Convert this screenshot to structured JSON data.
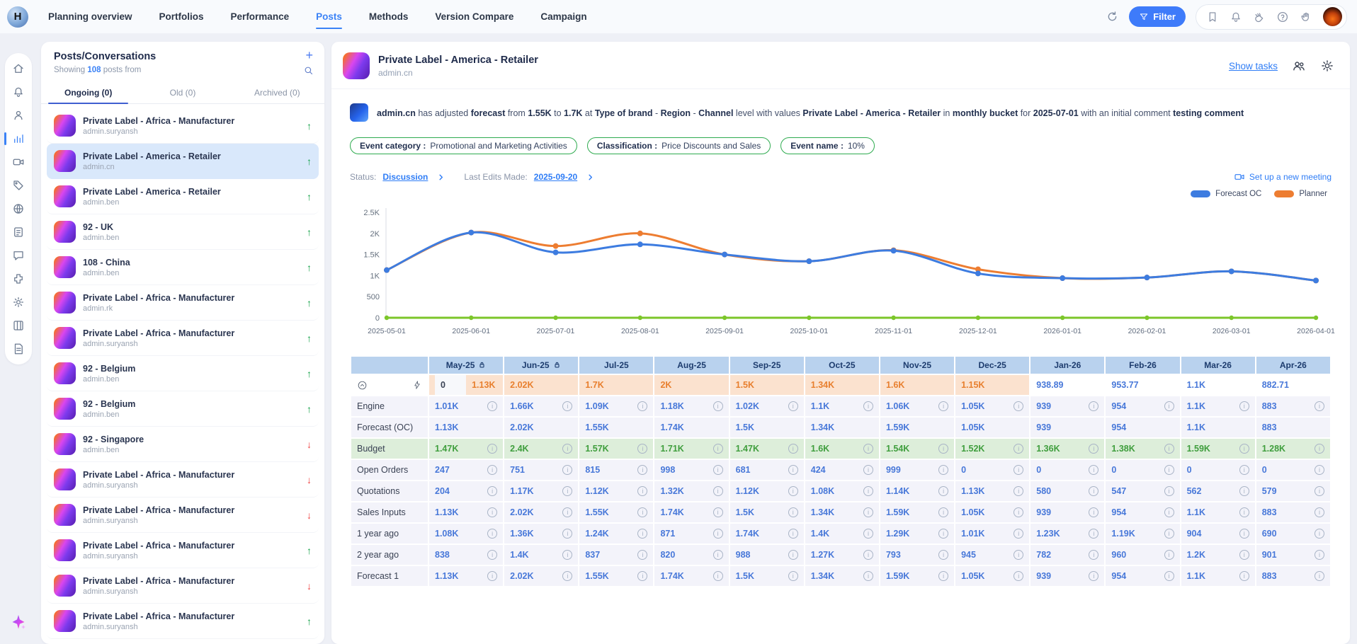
{
  "topnav": {
    "logo_letter": "H",
    "items": [
      {
        "label": "Planning overview",
        "active": false
      },
      {
        "label": "Portfolios",
        "active": false
      },
      {
        "label": "Performance",
        "active": false
      },
      {
        "label": "Posts",
        "active": true
      },
      {
        "label": "Methods",
        "active": false
      },
      {
        "label": "Version Compare",
        "active": false
      },
      {
        "label": "Campaign",
        "active": false
      }
    ],
    "filter_label": "Filter",
    "right_icons": [
      "bookmark",
      "bell",
      "whats-new",
      "help",
      "gesture"
    ]
  },
  "rail": {
    "items": [
      "home",
      "alerts",
      "users",
      "analytics",
      "meetings",
      "tags",
      "globe",
      "planner",
      "chat",
      "integrations",
      "settings",
      "board",
      "notes"
    ],
    "active": "analytics"
  },
  "posts_panel": {
    "title": "Posts/Conversations",
    "subtitle_prefix": "Showing ",
    "subtitle_count": "108",
    "subtitle_suffix": " posts from",
    "tabs": [
      {
        "label": "Ongoing (0)",
        "active": true
      },
      {
        "label": "Old (0)",
        "active": false
      },
      {
        "label": "Archived (0)",
        "active": false
      }
    ],
    "items": [
      {
        "title": "Private Label - Africa - Manufacturer",
        "user": "admin.suryansh",
        "trend": "up",
        "selected": false
      },
      {
        "title": "Private Label - America - Retailer",
        "user": "admin.cn",
        "trend": "up",
        "selected": true
      },
      {
        "title": "Private Label - America - Retailer",
        "user": "admin.ben",
        "trend": "up",
        "selected": false
      },
      {
        "title": "92 - UK",
        "user": "admin.ben",
        "trend": "up",
        "selected": false
      },
      {
        "title": "108 - China",
        "user": "admin.ben",
        "trend": "up",
        "selected": false
      },
      {
        "title": "Private Label - Africa - Manufacturer",
        "user": "admin.rk",
        "trend": "up",
        "selected": false
      },
      {
        "title": "Private Label - Africa - Manufacturer",
        "user": "admin.suryansh",
        "trend": "up",
        "selected": false
      },
      {
        "title": "92 - Belgium",
        "user": "admin.ben",
        "trend": "up",
        "selected": false
      },
      {
        "title": "92 - Belgium",
        "user": "admin.ben",
        "trend": "up",
        "selected": false
      },
      {
        "title": "92 - Singapore",
        "user": "admin.ben",
        "trend": "down",
        "selected": false
      },
      {
        "title": "Private Label - Africa - Manufacturer",
        "user": "admin.suryansh",
        "trend": "down",
        "selected": false
      },
      {
        "title": "Private Label - Africa - Manufacturer",
        "user": "admin.suryansh",
        "trend": "down",
        "selected": false
      },
      {
        "title": "Private Label - Africa - Manufacturer",
        "user": "admin.suryansh",
        "trend": "up",
        "selected": false
      },
      {
        "title": "Private Label - Africa - Manufacturer",
        "user": "admin.suryansh",
        "trend": "down",
        "selected": false
      },
      {
        "title": "Private Label - Africa - Manufacturer",
        "user": "admin.suryansh",
        "trend": "up",
        "selected": false
      }
    ]
  },
  "main": {
    "title": "Private Label - America - Retailer",
    "subtitle": "admin.cn",
    "show_tasks_label": "Show tasks",
    "message_parts": [
      {
        "t": "admin.cn",
        "b": true
      },
      {
        "t": " has adjusted ",
        "b": false
      },
      {
        "t": "forecast",
        "b": true
      },
      {
        "t": " from ",
        "b": false
      },
      {
        "t": "1.55K",
        "b": true
      },
      {
        "t": " to ",
        "b": false
      },
      {
        "t": "1.7K",
        "b": true
      },
      {
        "t": " at ",
        "b": false
      },
      {
        "t": "Type of brand",
        "b": true
      },
      {
        "t": " - ",
        "b": false
      },
      {
        "t": "Region",
        "b": true
      },
      {
        "t": " - ",
        "b": false
      },
      {
        "t": "Channel",
        "b": true
      },
      {
        "t": " level with values ",
        "b": false
      },
      {
        "t": "Private Label - America - Retailer",
        "b": true
      },
      {
        "t": " in ",
        "b": false
      },
      {
        "t": "monthly bucket",
        "b": true
      },
      {
        "t": " for ",
        "b": false
      },
      {
        "t": "2025-07-01",
        "b": true
      },
      {
        "t": " with an initial comment ",
        "b": false
      },
      {
        "t": "testing comment",
        "b": true
      }
    ],
    "tags": [
      {
        "label": "Event category :",
        "value": "Promotional and Marketing Activities"
      },
      {
        "label": "Classification :",
        "value": "Price Discounts and Sales"
      },
      {
        "label": "Event name :",
        "value": "10%"
      }
    ],
    "status": {
      "label": "Status:",
      "value": "Discussion",
      "edits_label": "Last Edits Made:",
      "edits_value": "2025-09-20"
    },
    "meeting_label": "Set up a new meeting"
  },
  "chart_data": {
    "type": "line",
    "x": [
      "2025-05-01",
      "2025-06-01",
      "2025-07-01",
      "2025-08-01",
      "2025-09-01",
      "2025-10-01",
      "2025-11-01",
      "2025-12-01",
      "2026-01-01",
      "2026-02-01",
      "2026-03-01",
      "2026-04-01"
    ],
    "series": [
      {
        "name": "Planner",
        "color": "#ed7d31",
        "in_legend": true,
        "values": [
          1130,
          2020,
          1700,
          2000,
          1500,
          1340,
          1600,
          1150,
          938.89,
          953.77,
          1100,
          882.71
        ]
      },
      {
        "name": "Forecast OC",
        "color": "#3d7ce0",
        "in_legend": true,
        "values": [
          1130,
          2020,
          1550,
          1740,
          1500,
          1340,
          1590,
          1050,
          939,
          954,
          1100,
          883
        ]
      },
      {
        "name": "baseline",
        "color": "#7cc62a",
        "in_legend": false,
        "values": [
          0,
          0,
          0,
          0,
          0,
          0,
          0,
          0,
          0,
          0,
          0,
          0
        ]
      }
    ],
    "legend_order": [
      "Forecast OC",
      "Planner"
    ],
    "ylim": [
      0,
      2500
    ],
    "yticks": [
      {
        "v": 0,
        "label": "0"
      },
      {
        "v": 500,
        "label": "500"
      },
      {
        "v": 1000,
        "label": "1K"
      },
      {
        "v": 1500,
        "label": "1.5K"
      },
      {
        "v": 2000,
        "label": "2K"
      },
      {
        "v": 2500,
        "label": "2.5K"
      }
    ],
    "grid": false,
    "legend_position": "top-right"
  },
  "table": {
    "months": [
      {
        "label": "May-25",
        "locked": true
      },
      {
        "label": "Jun-25",
        "locked": true
      },
      {
        "label": "Jul-25",
        "locked": false
      },
      {
        "label": "Aug-25",
        "locked": false
      },
      {
        "label": "Sep-25",
        "locked": false
      },
      {
        "label": "Oct-25",
        "locked": false
      },
      {
        "label": "Nov-25",
        "locked": false
      },
      {
        "label": "Dec-25",
        "locked": false
      },
      {
        "label": "Jan-26",
        "locked": false
      },
      {
        "label": "Feb-26",
        "locked": false
      },
      {
        "label": "Mar-26",
        "locked": false
      },
      {
        "label": "Apr-26",
        "locked": false
      }
    ],
    "planner_row": {
      "may_prefix": "0",
      "values": [
        "1.13K",
        "2.02K",
        "1.7K",
        "2K",
        "1.5K",
        "1.34K",
        "1.6K",
        "1.15K",
        "938.89",
        "953.77",
        "1.1K",
        "882.71"
      ],
      "highlight_until": 8
    },
    "rows": [
      {
        "label": "Engine",
        "info": true,
        "style": "normal",
        "values": [
          "1.01K",
          "1.66K",
          "1.09K",
          "1.18K",
          "1.02K",
          "1.1K",
          "1.06K",
          "1.05K",
          "939",
          "954",
          "1.1K",
          "883"
        ]
      },
      {
        "label": "Forecast (OC)",
        "info": false,
        "style": "normal",
        "values": [
          "1.13K",
          "2.02K",
          "1.55K",
          "1.74K",
          "1.5K",
          "1.34K",
          "1.59K",
          "1.05K",
          "939",
          "954",
          "1.1K",
          "883"
        ]
      },
      {
        "label": "Budget",
        "info": true,
        "style": "budget",
        "values": [
          "1.47K",
          "2.4K",
          "1.57K",
          "1.71K",
          "1.47K",
          "1.6K",
          "1.54K",
          "1.52K",
          "1.36K",
          "1.38K",
          "1.59K",
          "1.28K"
        ]
      },
      {
        "label": "Open Orders",
        "info": true,
        "style": "normal",
        "values": [
          "247",
          "751",
          "815",
          "998",
          "681",
          "424",
          "999",
          "0",
          "0",
          "0",
          "0",
          "0"
        ]
      },
      {
        "label": "Quotations",
        "info": true,
        "style": "normal",
        "values": [
          "204",
          "1.17K",
          "1.12K",
          "1.32K",
          "1.12K",
          "1.08K",
          "1.14K",
          "1.13K",
          "580",
          "547",
          "562",
          "579"
        ]
      },
      {
        "label": "Sales Inputs",
        "info": true,
        "style": "normal",
        "values": [
          "1.13K",
          "2.02K",
          "1.55K",
          "1.74K",
          "1.5K",
          "1.34K",
          "1.59K",
          "1.05K",
          "939",
          "954",
          "1.1K",
          "883"
        ]
      },
      {
        "label": "1 year ago",
        "info": true,
        "style": "normal",
        "values": [
          "1.08K",
          "1.36K",
          "1.24K",
          "871",
          "1.74K",
          "1.4K",
          "1.29K",
          "1.01K",
          "1.23K",
          "1.19K",
          "904",
          "690"
        ]
      },
      {
        "label": "2 year ago",
        "info": true,
        "style": "normal",
        "values": [
          "838",
          "1.4K",
          "837",
          "820",
          "988",
          "1.27K",
          "793",
          "945",
          "782",
          "960",
          "1.2K",
          "901"
        ]
      },
      {
        "label": "Forecast 1",
        "info": true,
        "style": "normal",
        "values": [
          "1.13K",
          "2.02K",
          "1.55K",
          "1.74K",
          "1.5K",
          "1.34K",
          "1.59K",
          "1.05K",
          "939",
          "954",
          "1.1K",
          "883"
        ]
      }
    ]
  },
  "colors": {
    "accent_blue": "#3b82f6",
    "chart_blue": "#3d7ce0",
    "chart_orange": "#ed7d31",
    "chart_green": "#7cc62a",
    "tag_green": "#2eab4f",
    "table_header_bg": "#b9d2ee",
    "planner_peach": "#fbe2cf",
    "budget_green_bg": "#ddeeda"
  }
}
